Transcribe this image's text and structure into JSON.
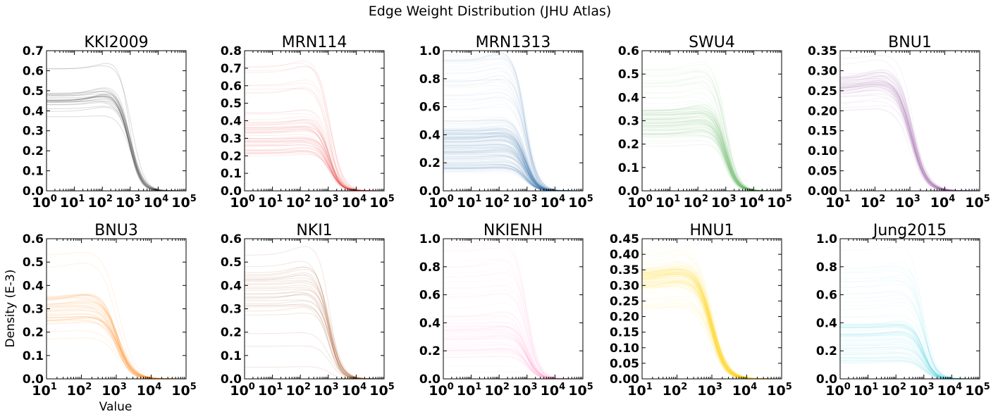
{
  "figure": {
    "title": "Edge Weight Distribution (JHU Atlas)",
    "xlabel": "Value",
    "ylabel": "Density (E-3)"
  },
  "chart_data": [
    {
      "type": "line",
      "title": "KKI2009",
      "color": "#444444",
      "xscale": "log",
      "xlim_exp": [
        0,
        5
      ],
      "xticks_exp": [
        0,
        1,
        2,
        3,
        4,
        5
      ],
      "ylim": [
        0,
        0.7
      ],
      "yticks": [
        "0.0",
        "0.1",
        "0.2",
        "0.3",
        "0.4",
        "0.5",
        "0.6",
        "0.7"
      ],
      "n_curves": 24,
      "plateau_range": [
        0.37,
        0.61
      ],
      "plateau_mid": 0.45,
      "decline_center_exp": 3.0,
      "tail_end_exp": 4.3
    },
    {
      "type": "line",
      "title": "MRN114",
      "color": "#e41a1c",
      "xscale": "log",
      "xlim_exp": [
        0,
        5
      ],
      "xticks_exp": [
        0,
        1,
        2,
        3,
        4,
        5
      ],
      "ylim": [
        0,
        0.8
      ],
      "yticks": [
        "0.0",
        "0.1",
        "0.2",
        "0.3",
        "0.4",
        "0.5",
        "0.6",
        "0.7",
        "0.8"
      ],
      "n_curves": 60,
      "plateau_range": [
        0.2,
        0.71
      ],
      "plateau_mid": 0.3,
      "decline_center_exp": 3.05,
      "tail_end_exp": 4.5
    },
    {
      "type": "line",
      "title": "MRN1313",
      "color": "#377eb8",
      "xscale": "log",
      "xlim_exp": [
        0,
        5
      ],
      "xticks_exp": [
        0,
        1,
        2,
        3,
        4,
        5
      ],
      "ylim": [
        0,
        1.0
      ],
      "yticks": [
        "0.0",
        "0.2",
        "0.4",
        "0.6",
        "0.8",
        "1.0"
      ],
      "n_curves": 220,
      "plateau_range": [
        0.13,
        0.97
      ],
      "plateau_mid": 0.3,
      "decline_center_exp": 2.95,
      "tail_end_exp": 4.4
    },
    {
      "type": "line",
      "title": "SWU4",
      "color": "#4daf4a",
      "xscale": "log",
      "xlim_exp": [
        0,
        5
      ],
      "xticks_exp": [
        0,
        1,
        2,
        3,
        4,
        5
      ],
      "ylim": [
        0,
        0.6
      ],
      "yticks": [
        "0.0",
        "0.1",
        "0.2",
        "0.3",
        "0.4",
        "0.5",
        "0.6"
      ],
      "n_curves": 120,
      "plateau_range": [
        0.19,
        0.52
      ],
      "plateau_mid": 0.29,
      "decline_center_exp": 3.0,
      "tail_end_exp": 4.3
    },
    {
      "type": "line",
      "title": "BNU1",
      "color": "#984ea3",
      "xscale": "log",
      "xlim_exp": [
        1,
        5
      ],
      "xticks_exp": [
        1,
        2,
        3,
        4,
        5
      ],
      "ylim": [
        0,
        0.35
      ],
      "yticks": [
        "0.00",
        "0.05",
        "0.10",
        "0.15",
        "0.20",
        "0.25",
        "0.30",
        "0.35"
      ],
      "n_curves": 60,
      "plateau_range": [
        0.2,
        0.33
      ],
      "plateau_mid": 0.26,
      "decline_center_exp": 3.05,
      "tail_end_exp": 4.5
    },
    {
      "type": "line",
      "title": "BNU3",
      "color": "#ff7f00",
      "xscale": "log",
      "xlim_exp": [
        1,
        5
      ],
      "xticks_exp": [
        1,
        2,
        3,
        4,
        5
      ],
      "ylim": [
        0,
        0.6
      ],
      "yticks": [
        "0.0",
        "0.1",
        "0.2",
        "0.3",
        "0.4",
        "0.5",
        "0.6"
      ],
      "n_curves": 45,
      "plateau_range": [
        0.17,
        0.53
      ],
      "plateau_mid": 0.29,
      "decline_center_exp": 3.05,
      "tail_end_exp": 4.4
    },
    {
      "type": "line",
      "title": "NKI1",
      "color": "#a65628",
      "xscale": "log",
      "xlim_exp": [
        0,
        5
      ],
      "xticks_exp": [
        0,
        1,
        2,
        3,
        4,
        5
      ],
      "ylim": [
        0,
        0.6
      ],
      "yticks": [
        "0.0",
        "0.1",
        "0.2",
        "0.3",
        "0.4",
        "0.5",
        "0.6"
      ],
      "n_curves": 30,
      "plateau_range": [
        0.05,
        0.53
      ],
      "plateau_mid": 0.35,
      "decline_center_exp": 3.05,
      "tail_end_exp": 4.4
    },
    {
      "type": "line",
      "title": "NKIENH",
      "color": "#f781bf",
      "xscale": "log",
      "xlim_exp": [
        0,
        5
      ],
      "xticks_exp": [
        0,
        1,
        2,
        3,
        4,
        5
      ],
      "ylim": [
        0,
        1.0
      ],
      "yticks": [
        "0.0",
        "0.2",
        "0.4",
        "0.6",
        "0.8",
        "1.0"
      ],
      "n_curves": 90,
      "plateau_range": [
        0.05,
        0.97
      ],
      "plateau_mid": 0.3,
      "decline_center_exp": 3.0,
      "tail_end_exp": 4.3
    },
    {
      "type": "line",
      "title": "HNU1",
      "color": "#ffd700",
      "xscale": "log",
      "xlim_exp": [
        1,
        5
      ],
      "xticks_exp": [
        1,
        2,
        3,
        4,
        5
      ],
      "ylim": [
        0,
        0.45
      ],
      "yticks": [
        "0.00",
        "0.05",
        "0.10",
        "0.15",
        "0.20",
        "0.25",
        "0.30",
        "0.35",
        "0.40",
        "0.45"
      ],
      "n_curves": 150,
      "plateau_range": [
        0.22,
        0.4
      ],
      "plateau_mid": 0.32,
      "decline_center_exp": 3.0,
      "tail_end_exp": 4.5
    },
    {
      "type": "line",
      "title": "Jung2015",
      "color": "#17becf",
      "xscale": "log",
      "xlim_exp": [
        0,
        5
      ],
      "xticks_exp": [
        0,
        1,
        2,
        3,
        4,
        5
      ],
      "ylim": [
        0,
        1.0
      ],
      "yticks": [
        "0.0",
        "0.2",
        "0.4",
        "0.6",
        "0.8",
        "1.0"
      ],
      "n_curves": 90,
      "plateau_range": [
        0.13,
        0.92
      ],
      "plateau_mid": 0.25,
      "decline_center_exp": 3.0,
      "tail_end_exp": 4.5
    }
  ]
}
